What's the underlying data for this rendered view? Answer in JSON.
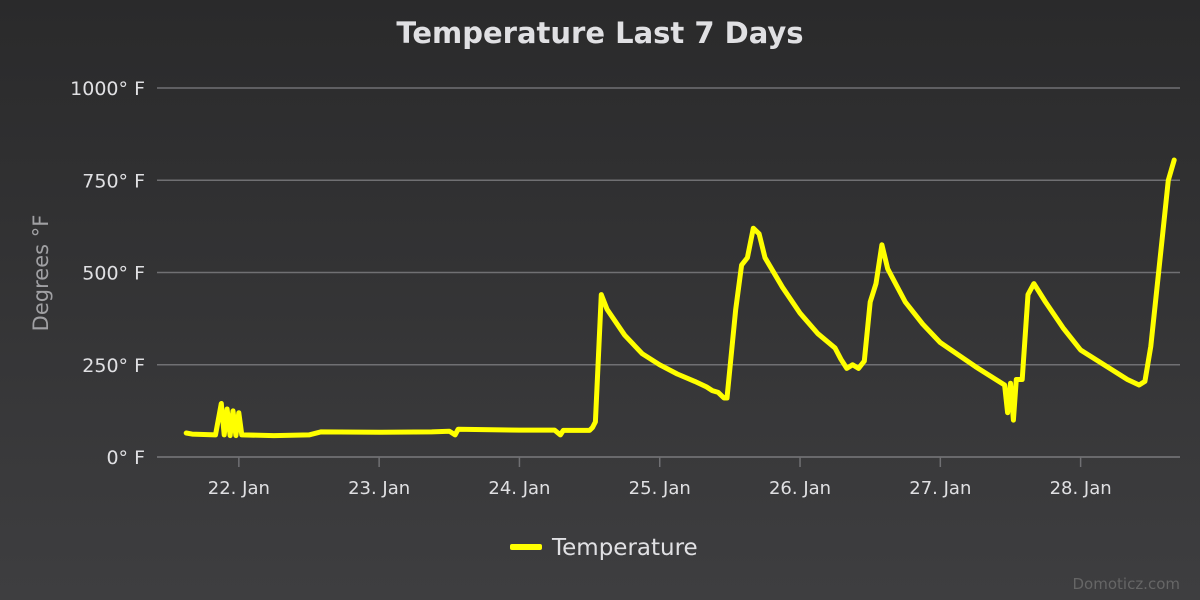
{
  "chart_data": {
    "type": "line",
    "title": "Temperature Last 7 Days",
    "ylabel": "Degrees °F",
    "xlabel": "",
    "ylim": [
      0,
      1000
    ],
    "yticks": [
      0,
      250,
      500,
      750,
      1000
    ],
    "ytick_labels": [
      "0° F",
      "250° F",
      "500° F",
      "750° F",
      "1000° F"
    ],
    "xlim": [
      "2025-01-21T10:00",
      "2025-01-28T17:00"
    ],
    "xticks": [
      "2025-01-22T00:00",
      "2025-01-23T00:00",
      "2025-01-24T00:00",
      "2025-01-25T00:00",
      "2025-01-26T00:00",
      "2025-01-27T00:00",
      "2025-01-28T00:00"
    ],
    "xtick_labels": [
      "22. Jan",
      "23. Jan",
      "24. Jan",
      "25. Jan",
      "26. Jan",
      "27. Jan",
      "28. Jan"
    ],
    "grid": true,
    "legend_position": "bottom-center",
    "series": [
      {
        "name": "Temperature",
        "color": "#ffff00",
        "points": [
          [
            "2025-01-21T15:00",
            65
          ],
          [
            "2025-01-21T16:00",
            62
          ],
          [
            "2025-01-21T20:00",
            60
          ],
          [
            "2025-01-21T21:00",
            145
          ],
          [
            "2025-01-21T21:30",
            60
          ],
          [
            "2025-01-21T22:00",
            130
          ],
          [
            "2025-01-21T22:30",
            58
          ],
          [
            "2025-01-21T23:00",
            125
          ],
          [
            "2025-01-21T23:30",
            58
          ],
          [
            "2025-01-22T00:00",
            120
          ],
          [
            "2025-01-22T00:30",
            60
          ],
          [
            "2025-01-22T06:00",
            58
          ],
          [
            "2025-01-22T12:00",
            60
          ],
          [
            "2025-01-22T14:00",
            68
          ],
          [
            "2025-01-23T00:00",
            67
          ],
          [
            "2025-01-23T09:00",
            68
          ],
          [
            "2025-01-23T12:00",
            70
          ],
          [
            "2025-01-23T13:00",
            60
          ],
          [
            "2025-01-23T13:30",
            75
          ],
          [
            "2025-01-24T00:00",
            73
          ],
          [
            "2025-01-24T06:00",
            73
          ],
          [
            "2025-01-24T07:00",
            60
          ],
          [
            "2025-01-24T07:30",
            72
          ],
          [
            "2025-01-24T12:00",
            72
          ],
          [
            "2025-01-24T12:30",
            80
          ],
          [
            "2025-01-24T13:00",
            95
          ],
          [
            "2025-01-24T14:00",
            440
          ],
          [
            "2025-01-24T15:00",
            400
          ],
          [
            "2025-01-24T18:00",
            330
          ],
          [
            "2025-01-24T21:00",
            280
          ],
          [
            "2025-01-25T00:00",
            250
          ],
          [
            "2025-01-25T03:00",
            225
          ],
          [
            "2025-01-25T06:00",
            205
          ],
          [
            "2025-01-25T08:00",
            190
          ],
          [
            "2025-01-25T09:00",
            180
          ],
          [
            "2025-01-25T10:00",
            175
          ],
          [
            "2025-01-25T11:00",
            160
          ],
          [
            "2025-01-25T11:30",
            160
          ],
          [
            "2025-01-25T13:00",
            400
          ],
          [
            "2025-01-25T14:00",
            520
          ],
          [
            "2025-01-25T15:00",
            540
          ],
          [
            "2025-01-25T16:00",
            620
          ],
          [
            "2025-01-25T17:00",
            605
          ],
          [
            "2025-01-25T18:00",
            540
          ],
          [
            "2025-01-25T21:00",
            460
          ],
          [
            "2025-01-26T00:00",
            390
          ],
          [
            "2025-01-26T03:00",
            335
          ],
          [
            "2025-01-26T06:00",
            295
          ],
          [
            "2025-01-26T07:00",
            265
          ],
          [
            "2025-01-26T08:00",
            240
          ],
          [
            "2025-01-26T09:00",
            250
          ],
          [
            "2025-01-26T10:00",
            240
          ],
          [
            "2025-01-26T11:00",
            260
          ],
          [
            "2025-01-26T12:00",
            420
          ],
          [
            "2025-01-26T13:00",
            470
          ],
          [
            "2025-01-26T14:00",
            575
          ],
          [
            "2025-01-26T15:00",
            510
          ],
          [
            "2025-01-26T18:00",
            420
          ],
          [
            "2025-01-26T21:00",
            360
          ],
          [
            "2025-01-27T00:00",
            310
          ],
          [
            "2025-01-27T06:00",
            245
          ],
          [
            "2025-01-27T08:00",
            225
          ],
          [
            "2025-01-27T10:00",
            205
          ],
          [
            "2025-01-27T11:00",
            195
          ],
          [
            "2025-01-27T11:30",
            120
          ],
          [
            "2025-01-27T12:00",
            200
          ],
          [
            "2025-01-27T12:30",
            100
          ],
          [
            "2025-01-27T13:00",
            210
          ],
          [
            "2025-01-27T14:00",
            210
          ],
          [
            "2025-01-27T15:00",
            440
          ],
          [
            "2025-01-27T16:00",
            470
          ],
          [
            "2025-01-27T18:00",
            420
          ],
          [
            "2025-01-27T21:00",
            350
          ],
          [
            "2025-01-28T00:00",
            290
          ],
          [
            "2025-01-28T02:00",
            270
          ],
          [
            "2025-01-28T04:00",
            250
          ],
          [
            "2025-01-28T06:00",
            230
          ],
          [
            "2025-01-28T08:00",
            210
          ],
          [
            "2025-01-28T10:00",
            195
          ],
          [
            "2025-01-28T11:00",
            205
          ],
          [
            "2025-01-28T12:00",
            300
          ],
          [
            "2025-01-28T14:00",
            600
          ],
          [
            "2025-01-28T15:00",
            750
          ],
          [
            "2025-01-28T16:00",
            805
          ]
        ]
      }
    ]
  },
  "credits": "Domoticz.com",
  "colors": {
    "line": "#ffff00",
    "grid": "#707073",
    "text": "#e0e0e3",
    "axis_title": "#a0a0a3"
  }
}
